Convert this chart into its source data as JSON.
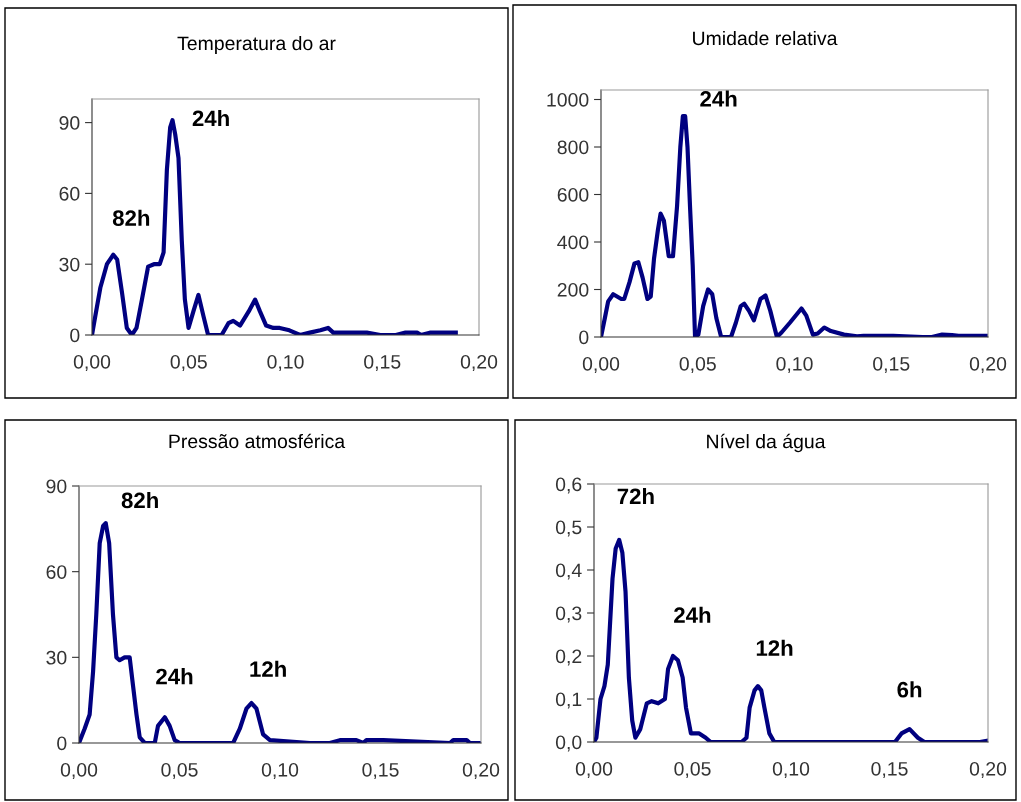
{
  "chart_data": [
    {
      "type": "line",
      "title": "Temperatura do ar",
      "xlim": [
        0,
        0.2
      ],
      "ylim": [
        0,
        100
      ],
      "xticks": [
        {
          "value": 0,
          "label": "0,00"
        },
        {
          "value": 0.05,
          "label": "0,05"
        },
        {
          "value": 0.1,
          "label": "0,10"
        },
        {
          "value": 0.15,
          "label": "0,15"
        },
        {
          "value": 0.2,
          "label": "0,20"
        }
      ],
      "yticks": [
        0,
        30,
        60,
        90
      ],
      "grid": false,
      "x": [
        0,
        0.0017,
        0.0043,
        0.0077,
        0.011,
        0.013,
        0.0155,
        0.018,
        0.0206,
        0.023,
        0.0258,
        0.029,
        0.032,
        0.035,
        0.037,
        0.0387,
        0.0404,
        0.0416,
        0.043,
        0.0447,
        0.0464,
        0.048,
        0.0499,
        0.0524,
        0.055,
        0.0576,
        0.06,
        0.067,
        0.0705,
        0.073,
        0.0765,
        0.081,
        0.0843,
        0.0868,
        0.09,
        0.0937,
        0.097,
        0.102,
        0.1075,
        0.1126,
        0.118,
        0.122,
        0.1247,
        0.133,
        0.142,
        0.149,
        0.157,
        0.162,
        0.168,
        0.17,
        0.1746,
        0.188
      ],
      "series": [
        {
          "color": "#000080",
          "values": [
            0,
            8,
            20,
            30,
            34,
            32,
            18,
            3,
            0,
            3,
            15,
            29,
            30,
            30,
            35,
            70,
            88,
            91,
            85,
            75,
            40,
            15,
            3,
            10,
            17,
            8,
            0,
            0,
            5,
            6,
            4,
            10,
            15,
            10,
            4,
            3,
            3,
            2,
            0,
            1,
            2,
            3,
            1,
            1,
            1,
            0,
            0,
            1,
            1,
            0,
            1,
            1
          ]
        }
      ],
      "annotations": [
        {
          "text": "24h",
          "x": 0.0416,
          "y": 91
        },
        {
          "text": "82h",
          "x": 0.011,
          "y": 34
        }
      ]
    },
    {
      "type": "line",
      "title": "Umidade relativa",
      "xlim": [
        0,
        0.2
      ],
      "ylim": [
        0,
        1040
      ],
      "xticks": [
        {
          "value": 0,
          "label": "0,00"
        },
        {
          "value": 0.05,
          "label": "0,05"
        },
        {
          "value": 0.1,
          "label": "0,10"
        },
        {
          "value": 0.15,
          "label": "0,15"
        },
        {
          "value": 0.2,
          "label": "0,20"
        }
      ],
      "yticks": [
        0,
        200,
        400,
        600,
        800,
        1000
      ],
      "grid": false,
      "x": [
        0,
        0.002,
        0.0037,
        0.0063,
        0.0105,
        0.012,
        0.0147,
        0.0173,
        0.0193,
        0.0215,
        0.024,
        0.0257,
        0.0274,
        0.0294,
        0.0308,
        0.0325,
        0.035,
        0.0372,
        0.0393,
        0.041,
        0.0423,
        0.0435,
        0.0447,
        0.046,
        0.0474,
        0.0486,
        0.0503,
        0.0528,
        0.0553,
        0.0575,
        0.0596,
        0.0621,
        0.0672,
        0.0697,
        0.0722,
        0.074,
        0.0765,
        0.079,
        0.0824,
        0.085,
        0.0875,
        0.0909,
        0.0934,
        0.0976,
        0.1036,
        0.1061,
        0.1095,
        0.112,
        0.1154,
        0.1188,
        0.1256,
        0.1323,
        0.1357,
        0.151,
        0.1662,
        0.171,
        0.1763,
        0.1814,
        0.1848,
        0.2
      ],
      "series": [
        {
          "color": "#000080",
          "values": [
            0,
            80,
            150,
            180,
            160,
            160,
            230,
            310,
            315,
            250,
            160,
            170,
            330,
            450,
            520,
            490,
            340,
            340,
            550,
            800,
            930,
            930,
            800,
            550,
            300,
            0,
            10,
            130,
            200,
            180,
            80,
            0,
            0,
            60,
            130,
            140,
            110,
            70,
            160,
            175,
            110,
            0,
            20,
            60,
            120,
            90,
            10,
            15,
            40,
            25,
            10,
            3,
            5,
            5,
            0,
            0,
            10,
            8,
            5,
            5
          ]
        }
      ],
      "annotations": [
        {
          "text": "24h",
          "x": 0.0423,
          "y": 930
        }
      ]
    },
    {
      "type": "line",
      "title": "Pressão atmosférica",
      "xlim": [
        0,
        0.2
      ],
      "ylim": [
        0,
        90
      ],
      "xticks": [
        {
          "value": 0,
          "label": "0,00"
        },
        {
          "value": 0.05,
          "label": "0,05"
        },
        {
          "value": 0.1,
          "label": "0,10"
        },
        {
          "value": 0.15,
          "label": "0,15"
        },
        {
          "value": 0.2,
          "label": "0,20"
        }
      ],
      "yticks": [
        0,
        30,
        60,
        90
      ],
      "grid": false,
      "x": [
        0,
        0.0028,
        0.0053,
        0.007,
        0.0086,
        0.0103,
        0.012,
        0.0133,
        0.015,
        0.0169,
        0.0186,
        0.0202,
        0.0227,
        0.0252,
        0.0269,
        0.0286,
        0.0302,
        0.0327,
        0.0377,
        0.0393,
        0.0427,
        0.0451,
        0.0476,
        0.0501,
        0.0692,
        0.0767,
        0.08,
        0.0833,
        0.0858,
        0.0883,
        0.0916,
        0.095,
        0.1149,
        0.1248,
        0.1298,
        0.138,
        0.1414,
        0.143,
        0.1514,
        0.1846,
        0.1862,
        0.1929,
        0.1945,
        0.2
      ],
      "series": [
        {
          "color": "#000080",
          "values": [
            0,
            5,
            10,
            25,
            45,
            70,
            76,
            77,
            70,
            45,
            30,
            29,
            30,
            30,
            20,
            10,
            2,
            0,
            0,
            6,
            9,
            6,
            1,
            0,
            0,
            0,
            5,
            12,
            14,
            12,
            3,
            1,
            0,
            0,
            1,
            1,
            0,
            1,
            1,
            0,
            1,
            1,
            0,
            0
          ]
        }
      ],
      "annotations": [
        {
          "text": "82h",
          "x": 0.0133,
          "y": 77
        },
        {
          "text": "24h",
          "x": 0.0427,
          "y": 9
        },
        {
          "text": "12h",
          "x": 0.0858,
          "y": 14
        }
      ]
    },
    {
      "type": "line",
      "title": "Nível da água",
      "xlim": [
        0,
        0.2
      ],
      "ylim": [
        0,
        0.6
      ],
      "xticks": [
        {
          "value": 0,
          "label": "0,00"
        },
        {
          "value": 0.05,
          "label": "0,05"
        },
        {
          "value": 0.1,
          "label": "0,10"
        },
        {
          "value": 0.15,
          "label": "0,15"
        },
        {
          "value": 0.2,
          "label": "0,20"
        }
      ],
      "yticks": [
        {
          "value": 0,
          "label": "0,0"
        },
        {
          "value": 0.1,
          "label": "0,1"
        },
        {
          "value": 0.2,
          "label": "0,2"
        },
        {
          "value": 0.3,
          "label": "0,3"
        },
        {
          "value": 0.4,
          "label": "0,4"
        },
        {
          "value": 0.5,
          "label": "0,5"
        },
        {
          "value": 0.6,
          "label": "0,6"
        }
      ],
      "grid": false,
      "x": [
        0,
        0.0012,
        0.0033,
        0.0053,
        0.007,
        0.0094,
        0.011,
        0.0128,
        0.0144,
        0.016,
        0.0177,
        0.0194,
        0.021,
        0.0235,
        0.0268,
        0.0293,
        0.0326,
        0.036,
        0.0376,
        0.0401,
        0.0426,
        0.045,
        0.0467,
        0.0492,
        0.0534,
        0.0567,
        0.0592,
        0.0749,
        0.0774,
        0.079,
        0.0815,
        0.0832,
        0.0849,
        0.0865,
        0.089,
        0.0915,
        0.113,
        0.1229,
        0.1528,
        0.1561,
        0.1602,
        0.1644,
        0.1677,
        0.1959,
        0.2
      ],
      "series": [
        {
          "color": "#000080",
          "values": [
            0,
            0.01,
            0.1,
            0.13,
            0.18,
            0.38,
            0.45,
            0.47,
            0.44,
            0.35,
            0.15,
            0.05,
            0.01,
            0.03,
            0.09,
            0.095,
            0.09,
            0.1,
            0.17,
            0.2,
            0.19,
            0.15,
            0.08,
            0.02,
            0.02,
            0.01,
            0,
            0,
            0.01,
            0.08,
            0.12,
            0.13,
            0.12,
            0.08,
            0.02,
            0,
            0,
            0,
            0,
            0.02,
            0.03,
            0.01,
            0,
            0,
            0.003
          ]
        }
      ],
      "annotations": [
        {
          "text": "72h",
          "x": 0.0128,
          "y": 0.47
        },
        {
          "text": "24h",
          "x": 0.0401,
          "y": 0.2
        },
        {
          "text": "12h",
          "x": 0.0832,
          "y": 0.13
        },
        {
          "text": "6h",
          "x": 0.1602,
          "y": 0.03
        }
      ]
    }
  ]
}
